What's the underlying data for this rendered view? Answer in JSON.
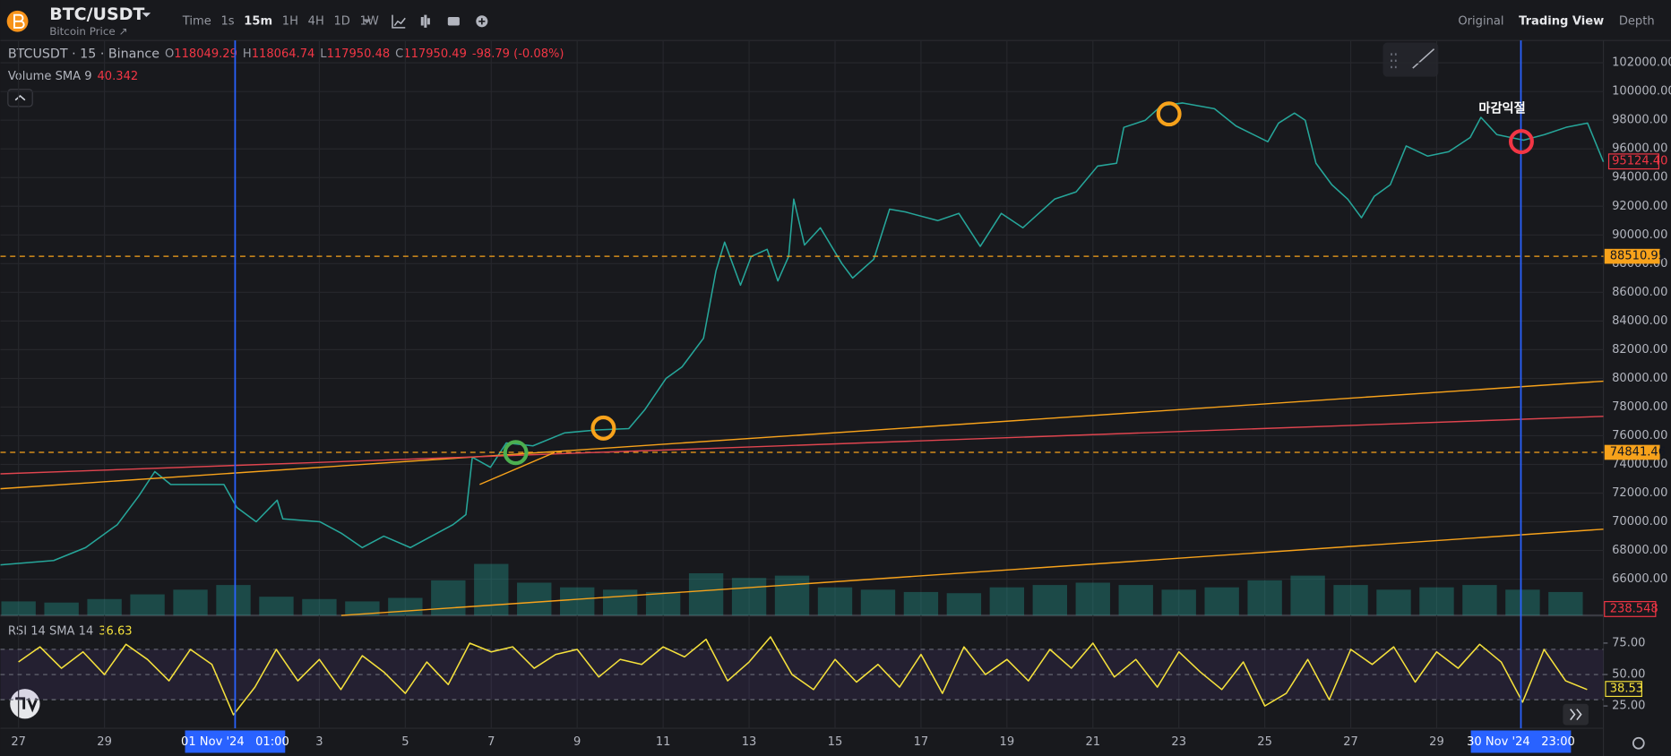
{
  "header": {
    "symbol": "BTC/USDT",
    "subtitle": "Bitcoin Price ↗",
    "intervals": [
      "Time",
      "1s",
      "15m",
      "1H",
      "4H",
      "1D",
      "1W"
    ],
    "views": [
      "Original",
      "Trading View",
      "Depth"
    ]
  },
  "legend": {
    "symbol": "BTCUSDT · 15 · Binance",
    "ohlc": [
      {
        "label": "O",
        "value": "118049.29"
      },
      {
        "label": "H",
        "value": "118064.74"
      },
      {
        "label": "L",
        "value": "117950.48"
      },
      {
        "label": "C",
        "value": "117950.49"
      }
    ],
    "change": "-98.79 (-0.08%)"
  },
  "volume_legend": {
    "label": "Volume SMA 9",
    "value": "40.342"
  },
  "rsi_legend": {
    "label": "RSI 14 SMA 14",
    "value": "36.63"
  },
  "chart_data": [
    {
      "type": "line",
      "color": "#26a69a",
      "x": [
        -0.42,
        0.82,
        1.56,
        2.3,
        2.8,
        3.17,
        3.54,
        4.78,
        5.08,
        5.53,
        6.02,
        6.15,
        7.01,
        7.51,
        8.0,
        8.5,
        9.12,
        9.49,
        10.11,
        10.41,
        10.56,
        10.98,
        11.35,
        11.97,
        12.71,
        13.46,
        14.2,
        14.57,
        15.07,
        15.44,
        15.94,
        16.23,
        16.43,
        16.8,
        17.05,
        17.42,
        17.67,
        17.92,
        18.04,
        18.29,
        18.66,
        19.16,
        19.41,
        19.9,
        20.27,
        20.64,
        21.39,
        21.88,
        22.38,
        22.87,
        23.37,
        24.11,
        24.61,
        25.11,
        25.55,
        25.72,
        26.22,
        26.59,
        27.09,
        27.83,
        28.33,
        29.07,
        29.32,
        29.69,
        29.94,
        30.19,
        30.56,
        30.93,
        31.25,
        31.55,
        31.92,
        32.29,
        32.79,
        33.28,
        33.78,
        34.03,
        34.4,
        35.02,
        35.51,
        36.01,
        36.51,
        36.88
      ],
      "values": [
        67000,
        67300,
        68200,
        69800,
        71800,
        73500,
        72600,
        72600,
        71000,
        70000,
        71500,
        70200,
        70000,
        69200,
        68200,
        69000,
        68200,
        68800,
        69800,
        70500,
        74500,
        73800,
        75500,
        75300,
        76200,
        76400,
        76500,
        77800,
        80000,
        80800,
        82800,
        87500,
        89500,
        86500,
        88500,
        89000,
        86800,
        88500,
        92500,
        89300,
        90500,
        88000,
        87000,
        88300,
        91800,
        91600,
        91000,
        91500,
        89200,
        91500,
        90500,
        92500,
        93000,
        94800,
        95000,
        97500,
        98000,
        99000,
        99200,
        98800,
        97600,
        96500,
        97800,
        98500,
        98000,
        95000,
        93500,
        92500,
        91200,
        92700,
        93500,
        96200,
        95500,
        95800,
        96800,
        98200,
        97000,
        96600,
        97000,
        97500,
        97800,
        95100
      ],
      "xlim": [
        -0.42,
        36.88
      ],
      "ylim": [
        63470,
        103560
      ],
      "xticks": [
        {
          "value": 0,
          "label": "27"
        },
        {
          "value": 2,
          "label": "29"
        },
        {
          "value": 7,
          "label": "3"
        },
        {
          "value": 9,
          "label": "5"
        },
        {
          "value": 11,
          "label": "7"
        },
        {
          "value": 13,
          "label": "9"
        },
        {
          "value": 15,
          "label": "11"
        },
        {
          "value": 17,
          "label": "13"
        },
        {
          "value": 19,
          "label": "15"
        },
        {
          "value": 21,
          "label": "17"
        },
        {
          "value": 23,
          "label": "19"
        },
        {
          "value": 25,
          "label": "21"
        },
        {
          "value": 27,
          "label": "23"
        },
        {
          "value": 29,
          "label": "25"
        },
        {
          "value": 31,
          "label": "27"
        },
        {
          "value": 33,
          "label": "29"
        }
      ],
      "yticks": [
        {
          "value": 66000,
          "label": "66000.00"
        },
        {
          "value": 68000,
          "label": "68000.00"
        },
        {
          "value": 70000,
          "label": "70000.00"
        },
        {
          "value": 72000,
          "label": "72000.00"
        },
        {
          "value": 74000,
          "label": "74000.00"
        },
        {
          "value": 76000,
          "label": "76000.00"
        },
        {
          "value": 78000,
          "label": "78000.00"
        },
        {
          "value": 80000,
          "label": "80000.00"
        },
        {
          "value": 82000,
          "label": "82000.00"
        },
        {
          "value": 84000,
          "label": "84000.00"
        },
        {
          "value": 86000,
          "label": "86000.00"
        },
        {
          "value": 88000,
          "label": "88000.00"
        },
        {
          "value": 90000,
          "label": "90000.00"
        },
        {
          "value": 92000,
          "label": "92000.00"
        },
        {
          "value": 94000,
          "label": "94000.00"
        },
        {
          "value": 96000,
          "label": "96000.00"
        },
        {
          "value": 98000,
          "label": "98000.00"
        },
        {
          "value": 100000,
          "label": "100000.00"
        },
        {
          "value": 102000,
          "label": "102000.00"
        }
      ],
      "grid": true,
      "last_price": {
        "value": 95124.4,
        "label": "95124.40"
      },
      "hlines": [
        {
          "value": 88510.95,
          "color": "#f7a21b"
        },
        {
          "value": 74841.46,
          "color": "#f7a21b"
        }
      ],
      "trendlines": [
        {
          "x": [
            -0.42,
            36.88
          ],
          "values": [
            72304,
            79802
          ],
          "color": "#f7a21b"
        },
        {
          "x": [
            -0.42,
            36.88
          ],
          "values": [
            73344,
            77353
          ],
          "color": "#e0454f"
        },
        {
          "x": [
            7.51,
            36.88
          ],
          "values": [
            63470,
            69484
          ],
          "color": "#f7a21b"
        },
        {
          "x": [
            10.73,
            12.47
          ],
          "values": [
            72601,
            74828
          ],
          "color": "#f7a21b"
        }
      ],
      "markers": [
        {
          "x": 11.57,
          "value": 74828,
          "color": "#4caf50"
        },
        {
          "x": 13.61,
          "value": 76536,
          "color": "#f7a21b"
        },
        {
          "x": 26.77,
          "value": 98436,
          "color": "#f7a21b"
        },
        {
          "x": 34.97,
          "value": 96506,
          "color": "#f23645",
          "label": "마감익절"
        }
      ],
      "vlines": [
        {
          "x": 5.04,
          "label": "01 Nov '24   01:00"
        },
        {
          "x": 34.96,
          "label": "30 Nov '24   23:00"
        }
      ]
    },
    {
      "type": "bar",
      "color": "#26a69a",
      "x": [
        0,
        1,
        2,
        3,
        4,
        5,
        6,
        7,
        8,
        9,
        10,
        11,
        12,
        13,
        14,
        15,
        16,
        17,
        18,
        19,
        20,
        21,
        22,
        23,
        24,
        25,
        26,
        27,
        28,
        29,
        30,
        31,
        32,
        33,
        34,
        35,
        36
      ],
      "values": [
        60,
        55,
        70,
        90,
        110,
        130,
        80,
        70,
        60,
        75,
        150,
        220,
        140,
        120,
        110,
        100,
        180,
        160,
        170,
        120,
        110,
        100,
        95,
        120,
        130,
        140,
        130,
        110,
        120,
        150,
        170,
        130,
        110,
        120,
        130,
        110,
        100
      ],
      "ylim": [
        0,
        400
      ],
      "last_value": 238.548
    },
    {
      "type": "line",
      "color": "#f5e13c",
      "x": [
        0,
        0.5,
        1,
        1.5,
        2,
        2.5,
        3,
        3.5,
        4,
        4.5,
        5,
        5.5,
        6,
        6.5,
        7,
        7.5,
        8,
        8.5,
        9,
        9.5,
        10,
        10.5,
        11,
        11.5,
        12,
        12.5,
        13,
        13.5,
        14,
        14.5,
        15,
        15.5,
        16,
        16.5,
        17,
        17.5,
        18,
        18.5,
        19,
        19.5,
        20,
        20.5,
        21,
        21.5,
        22,
        22.5,
        23,
        23.5,
        24,
        24.5,
        25,
        25.5,
        26,
        26.5,
        27,
        27.5,
        28,
        28.5,
        29,
        29.5,
        30,
        30.5,
        31,
        31.5,
        32,
        32.5,
        33,
        33.5,
        34,
        34.5,
        35,
        35.5,
        36,
        36.5
      ],
      "values": [
        60,
        72,
        55,
        68,
        50,
        74,
        62,
        45,
        70,
        58,
        18,
        40,
        70,
        45,
        62,
        38,
        65,
        52,
        35,
        60,
        42,
        75,
        68,
        72,
        55,
        66,
        70,
        48,
        62,
        58,
        72,
        64,
        78,
        45,
        60,
        80,
        50,
        38,
        62,
        44,
        58,
        40,
        66,
        35,
        72,
        50,
        62,
        45,
        70,
        55,
        75,
        48,
        62,
        40,
        68,
        52,
        38,
        60,
        25,
        35,
        62,
        30,
        70,
        58,
        72,
        44,
        68,
        55,
        74,
        60,
        28,
        70,
        45,
        38
      ],
      "ylim": [
        7.2,
        95.3
      ],
      "yticks": [
        {
          "value": 25,
          "label": "25.00"
        },
        {
          "value": 50,
          "label": "50.00"
        },
        {
          "value": 75,
          "label": "75.00"
        }
      ],
      "bands": [
        70,
        50,
        30
      ],
      "last_value": 38.53
    }
  ]
}
